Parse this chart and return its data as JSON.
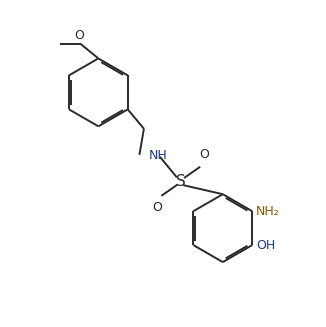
{
  "background_color": "#ffffff",
  "line_color": "#2a2a2a",
  "nh_color": "#1a3a8a",
  "ami_color": "#8b5a00",
  "oh_color": "#1a3a8a",
  "lw": 1.4,
  "dbo": 0.055,
  "figsize": [
    3.26,
    3.27
  ],
  "dpi": 100,
  "xlim": [
    0,
    10
  ],
  "ylim": [
    0,
    10
  ]
}
